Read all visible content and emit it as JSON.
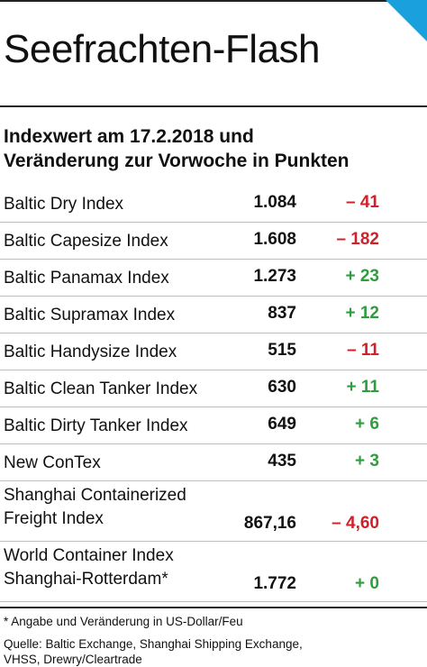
{
  "header": {
    "title": "Seefrachten-Flash"
  },
  "subtitle": {
    "line1": "Indexwert am 17.2.2018 und",
    "line2": "Veränderung zur Vorwoche in Punkten"
  },
  "rows": [
    {
      "name_lines": [
        "Baltic Dry Index"
      ],
      "value": "1.084",
      "change": "– 41",
      "direction": "down"
    },
    {
      "name_lines": [
        "Baltic Capesize Index"
      ],
      "value": "1.608",
      "change": "– 182",
      "direction": "down"
    },
    {
      "name_lines": [
        "Baltic Panamax Index"
      ],
      "value": "1.273",
      "change": "+ 23",
      "direction": "up"
    },
    {
      "name_lines": [
        "Baltic Supramax Index"
      ],
      "value": "837",
      "change": "+ 12",
      "direction": "up"
    },
    {
      "name_lines": [
        "Baltic Handysize Index"
      ],
      "value": "515",
      "change": "– 11",
      "direction": "down"
    },
    {
      "name_lines": [
        "Baltic Clean Tanker Index"
      ],
      "value": "630",
      "change": "+ 11",
      "direction": "up"
    },
    {
      "name_lines": [
        "Baltic Dirty Tanker Index"
      ],
      "value": "649",
      "change": "+ 6",
      "direction": "up"
    },
    {
      "name_lines": [
        "New ConTex"
      ],
      "value": "435",
      "change": "+ 3",
      "direction": "up"
    },
    {
      "name_lines": [
        "Shanghai Containerized",
        "Freight Index"
      ],
      "value": "867,16",
      "change": "– 4,60",
      "direction": "down"
    },
    {
      "name_lines": [
        "World Container Index",
        "Shanghai-Rotterdam*"
      ],
      "value": "1.772",
      "change": "+ 0",
      "direction": "up"
    }
  ],
  "footer": {
    "note": "* Angabe und Veränderung in US-Dollar/Feu",
    "source_line1": "Quelle: Baltic Exchange, Shanghai Shipping Exchange,",
    "source_line2": "VHSS, Drewry/Cleartrade"
  },
  "colors": {
    "accent": "#1aa0dc",
    "negative": "#d0202a",
    "positive": "#2e9e3c"
  }
}
